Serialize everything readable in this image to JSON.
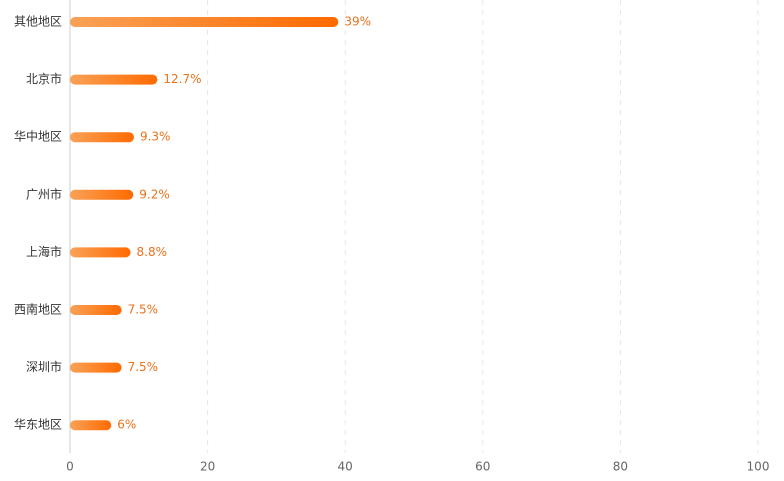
{
  "chart_data": {
    "type": "bar",
    "orientation": "horizontal",
    "categories": [
      "其他地区",
      "北京市",
      "华中地区",
      "广州市",
      "上海市",
      "西南地区",
      "深圳市",
      "华东地区"
    ],
    "values": [
      39,
      12.7,
      9.3,
      9.2,
      8.8,
      7.5,
      7.5,
      6
    ],
    "value_labels": [
      "39%",
      "12.7%",
      "9.3%",
      "9.2%",
      "8.8%",
      "7.5%",
      "7.5%",
      "6%"
    ],
    "colors": [
      "#f9a257",
      "#ff6a00"
    ],
    "xlim": [
      0,
      100
    ],
    "xticks": [
      0,
      20,
      40,
      60,
      80,
      100
    ],
    "grid": true
  }
}
